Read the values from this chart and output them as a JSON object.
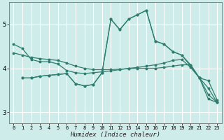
{
  "bg_color": "#ceecea",
  "grid_color": "#ffffff",
  "line_color": "#2e7d6e",
  "xlabel": "Humidex (Indice chaleur)",
  "xlim": [
    -0.5,
    23.5
  ],
  "ylim": [
    2.75,
    5.5
  ],
  "yticks": [
    3,
    4,
    5
  ],
  "xticks": [
    0,
    1,
    2,
    3,
    4,
    5,
    6,
    7,
    8,
    9,
    10,
    11,
    12,
    13,
    14,
    15,
    16,
    17,
    18,
    19,
    20,
    21,
    22,
    23
  ],
  "lines": [
    {
      "x": [
        0,
        1,
        2,
        3,
        4,
        5,
        6,
        7,
        8,
        9,
        10,
        11,
        12,
        13,
        14,
        15,
        16,
        17,
        18,
        19,
        20,
        21,
        22,
        23
      ],
      "y": [
        4.55,
        4.45,
        4.2,
        4.15,
        4.15,
        4.1,
        3.95,
        3.9,
        3.88,
        3.9,
        3.92,
        3.94,
        3.97,
        4.0,
        4.02,
        4.05,
        4.08,
        4.12,
        4.18,
        4.2,
        4.02,
        3.78,
        3.3,
        3.22
      ]
    },
    {
      "x": [
        0,
        1,
        2,
        3,
        4,
        5,
        6,
        7,
        8,
        9,
        10,
        11,
        12,
        13,
        14,
        15,
        16,
        17,
        18,
        19,
        20,
        21,
        22,
        23
      ],
      "y": [
        4.35,
        4.3,
        4.25,
        4.22,
        4.2,
        4.18,
        4.12,
        4.05,
        4.0,
        3.97,
        3.97,
        3.97,
        3.98,
        3.99,
        4.0,
        4.0,
        4.0,
        4.02,
        4.05,
        4.08,
        4.08,
        3.78,
        3.4,
        3.22
      ]
    },
    {
      "x": [
        1,
        2,
        3,
        4,
        5,
        6,
        7,
        8,
        9,
        10,
        11,
        12,
        13,
        14,
        15,
        16,
        17,
        18,
        19,
        20,
        21,
        22,
        23
      ],
      "y": [
        3.78,
        3.78,
        3.82,
        3.84,
        3.86,
        3.88,
        3.65,
        3.6,
        3.63,
        3.9,
        5.12,
        4.88,
        5.12,
        5.22,
        5.32,
        4.62,
        4.55,
        4.38,
        4.3,
        4.05,
        3.78,
        3.55,
        3.22
      ]
    },
    {
      "x": [
        1,
        2,
        3,
        4,
        5,
        6,
        7,
        8,
        9,
        10,
        11,
        12,
        13,
        14,
        15,
        16,
        17,
        18,
        19,
        20,
        21,
        22,
        23
      ],
      "y": [
        3.78,
        3.78,
        3.82,
        3.84,
        3.86,
        3.88,
        3.65,
        3.6,
        3.63,
        3.9,
        5.12,
        4.88,
        5.12,
        5.22,
        5.32,
        4.62,
        4.55,
        4.38,
        4.3,
        4.08,
        3.78,
        3.72,
        3.28
      ]
    }
  ]
}
